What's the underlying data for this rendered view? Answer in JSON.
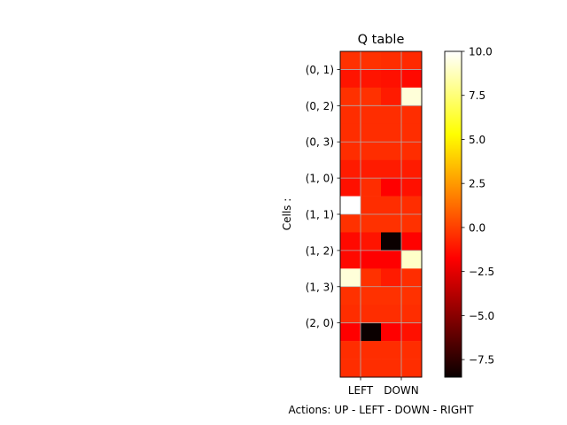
{
  "chart_data": {
    "type": "heatmap",
    "title": "Q table",
    "xlabel": "Actions: UP - LEFT - DOWN - RIGHT",
    "ylabel": "Cells :",
    "x_tick_labels": [
      "LEFT",
      "DOWN"
    ],
    "y_tick_labels": [
      "(0, 1)",
      "(0, 2)",
      "(0, 3)",
      "(1, 0)",
      "(1, 1)",
      "(1, 2)",
      "(1, 3)",
      "(2, 0)"
    ],
    "colormap": "hot",
    "vmin": -8.5,
    "vmax": 10.0,
    "colorbar_ticks": [
      10.0,
      7.5,
      5.0,
      2.5,
      0.0,
      -2.5,
      -5.0,
      -7.5
    ],
    "colorbar_tick_labels": [
      "10.0",
      "7.5",
      "5.0",
      "2.5",
      "0.0",
      "−2.5",
      "−5.0",
      "−7.5"
    ],
    "grid": true,
    "values": [
      [
        -0.4,
        -0.4,
        -0.5,
        -0.6
      ],
      [
        -1.2,
        -1.2,
        -1.3,
        -1.5
      ],
      [
        -0.4,
        -0.4,
        -1.0,
        9.3
      ],
      [
        -0.5,
        -0.5,
        -0.5,
        -0.5
      ],
      [
        -0.5,
        -0.5,
        -0.5,
        -0.5
      ],
      [
        -0.5,
        -0.5,
        -0.5,
        -0.5
      ],
      [
        -1.0,
        -1.0,
        -1.0,
        -1.0
      ],
      [
        -1.3,
        -0.5,
        -2.0,
        -1.3
      ],
      [
        10.0,
        -0.5,
        -0.5,
        -0.5
      ],
      [
        -0.4,
        -0.4,
        -0.4,
        -0.4
      ],
      [
        -1.5,
        -1.2,
        -8.5,
        -1.7
      ],
      [
        -1.5,
        -1.8,
        -1.8,
        9.0
      ],
      [
        9.3,
        -0.4,
        -1.0,
        -0.5
      ],
      [
        -0.4,
        -0.4,
        -0.4,
        -0.4
      ],
      [
        -0.5,
        -0.5,
        -0.5,
        -0.5
      ],
      [
        -2.0,
        -8.5,
        -1.8,
        -1.3
      ],
      [
        -0.5,
        -0.5,
        -0.5,
        -0.5
      ],
      [
        -0.5,
        -0.5,
        -0.5,
        -0.5
      ]
    ]
  }
}
